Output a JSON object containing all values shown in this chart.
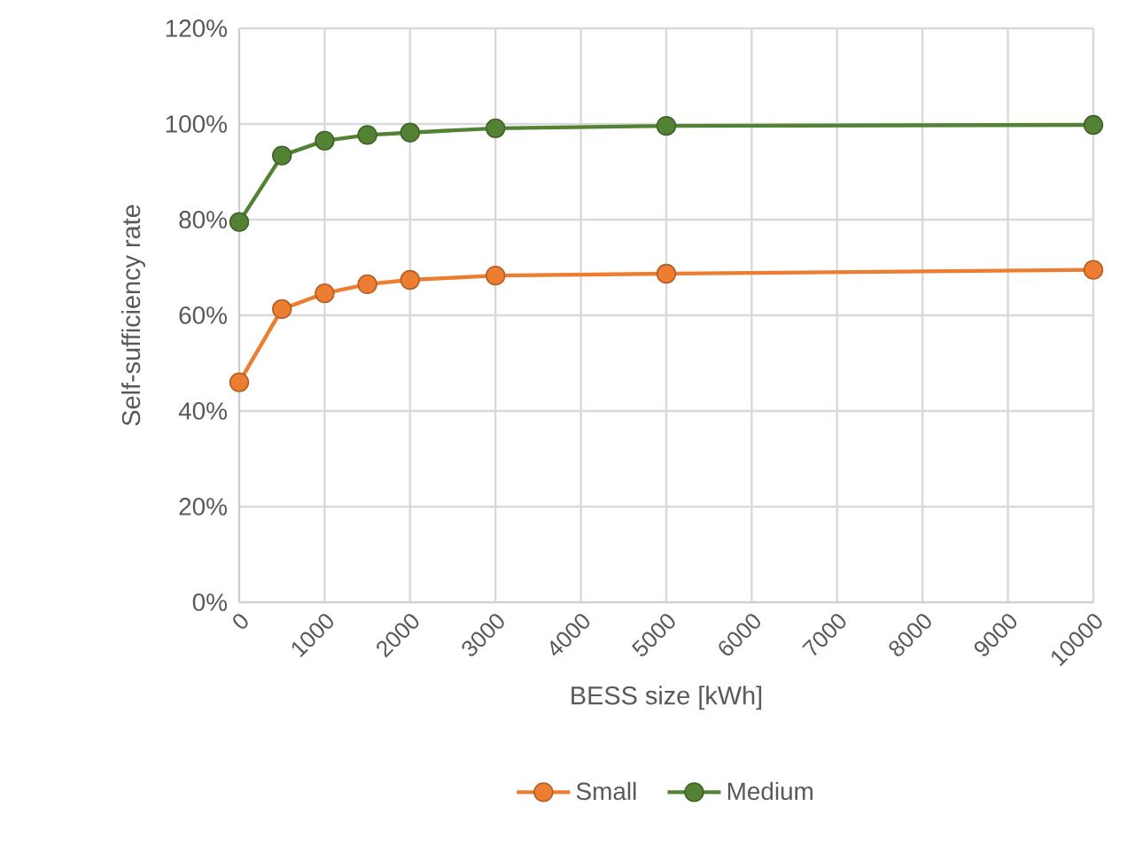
{
  "chart_data": {
    "type": "line",
    "xlabel": "BESS size  [kWh]",
    "ylabel": "Self-sufficiency rate",
    "x": [
      0,
      500,
      1000,
      1500,
      2000,
      3000,
      5000,
      10000
    ],
    "series": [
      {
        "name": "Small",
        "color": "#ed7d31",
        "values": [
          46,
          61.3,
          64.6,
          66.5,
          67.4,
          68.3,
          68.7,
          69.5
        ]
      },
      {
        "name": "Medium",
        "color": "#548235",
        "values": [
          79.5,
          93.4,
          96.5,
          97.7,
          98.2,
          99.1,
          99.6,
          99.8
        ]
      }
    ],
    "xlim": [
      0,
      10000
    ],
    "ylim": [
      0,
      120
    ],
    "xticks": [
      0,
      1000,
      2000,
      3000,
      4000,
      5000,
      6000,
      7000,
      8000,
      9000,
      10000
    ],
    "yticks": [
      {
        "value": 0,
        "label": "0%"
      },
      {
        "value": 20,
        "label": "20%"
      },
      {
        "value": 40,
        "label": "40%"
      },
      {
        "value": 60,
        "label": "60%"
      },
      {
        "value": 80,
        "label": "80%"
      },
      {
        "value": 100,
        "label": "100%"
      },
      {
        "value": 120,
        "label": "120%"
      }
    ],
    "grid": true,
    "legend": "bottom",
    "marker": "circle",
    "line_style": "solid"
  }
}
